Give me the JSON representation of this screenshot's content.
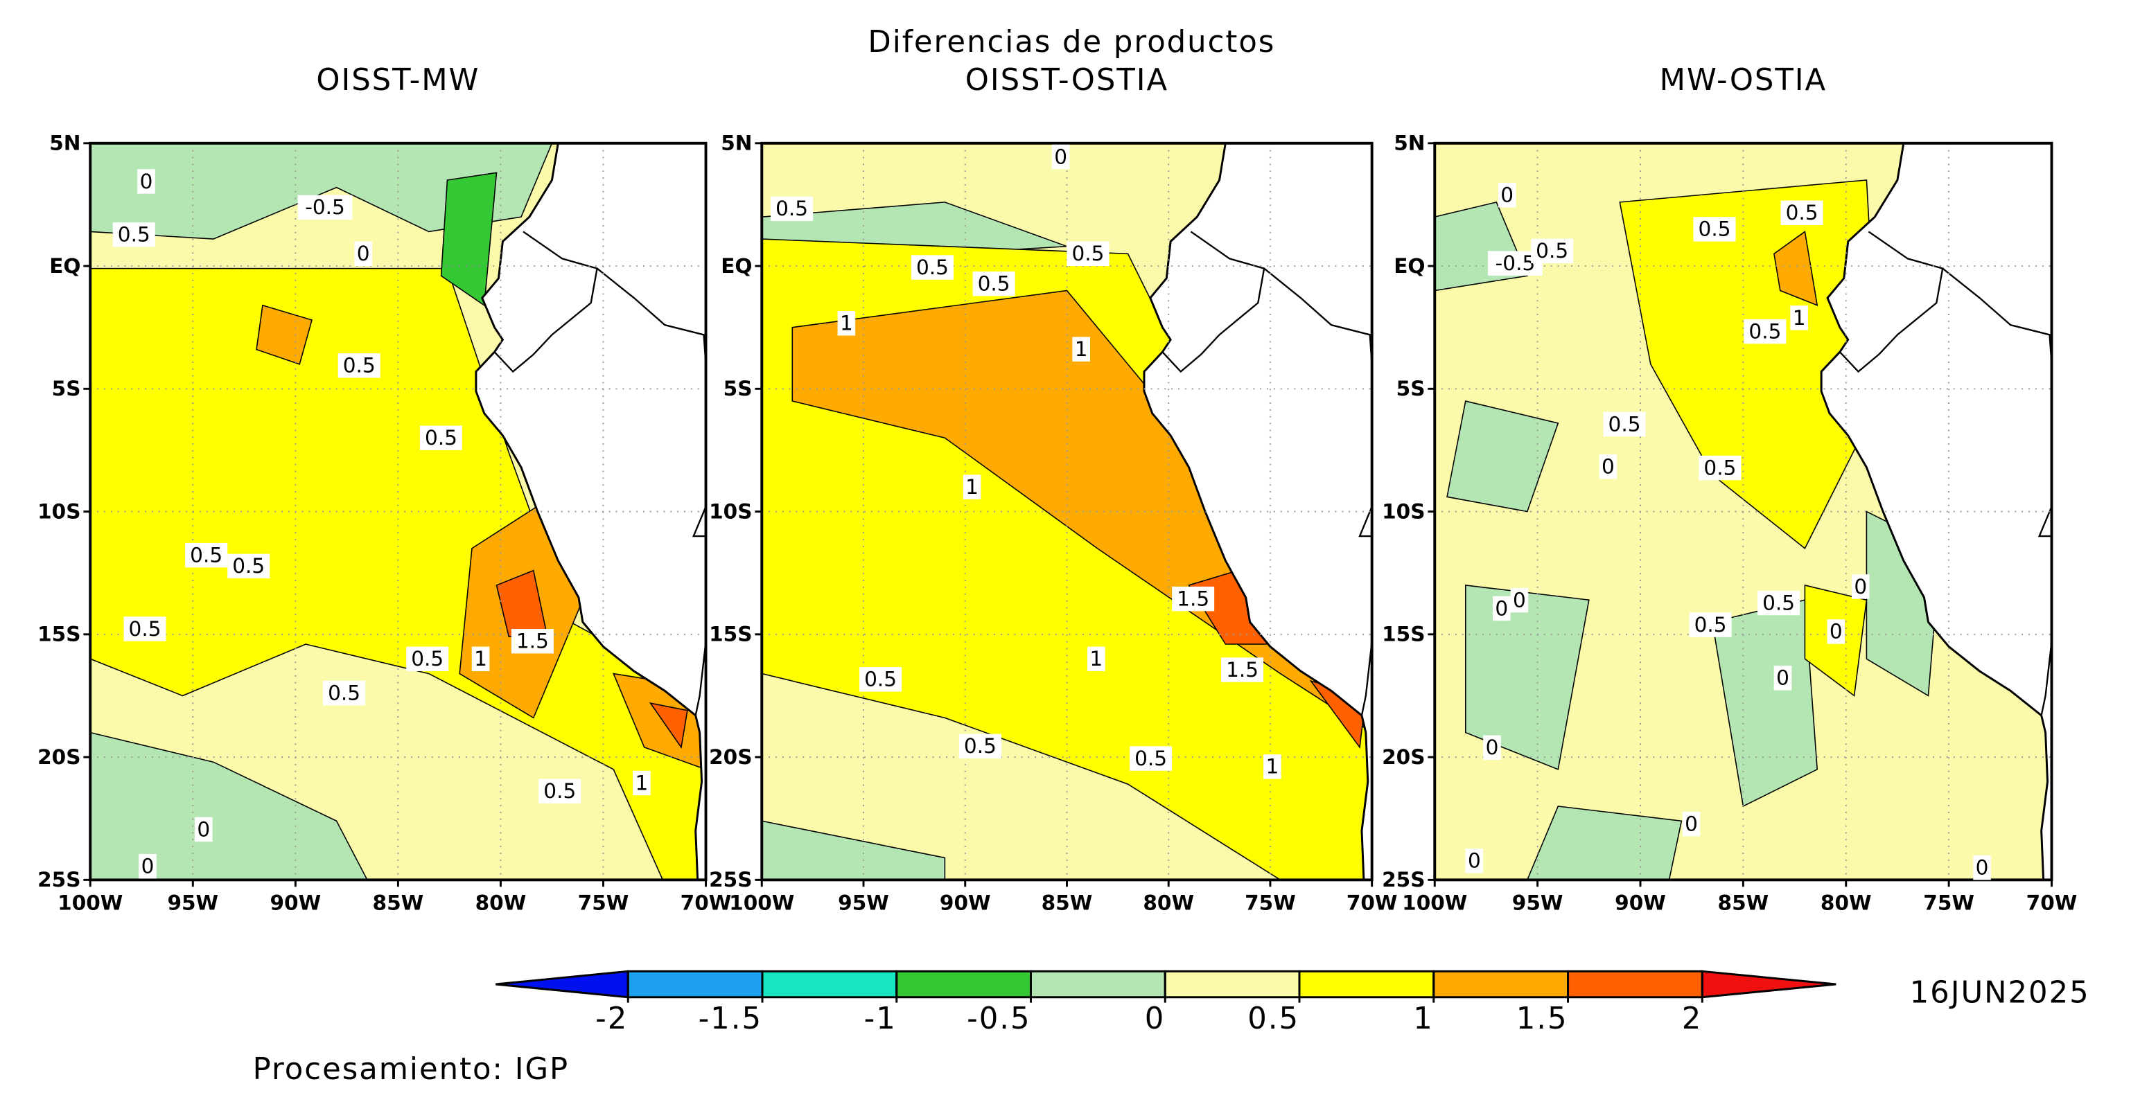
{
  "title": "Diferencias de productos",
  "panels": [
    {
      "title": "OISST-MW",
      "contour_labels": [
        "0",
        "-0.5",
        "0.5",
        "0",
        "0.5",
        "0.5",
        "0.5",
        "0.5",
        "0.5",
        "0.5",
        "1",
        "1.5",
        "0.5",
        "0.5",
        "1",
        "0",
        "0"
      ]
    },
    {
      "title": "OISST-OSTIA",
      "contour_labels": [
        "0",
        "0.5",
        "0.5",
        "0.5",
        "0.5",
        "1",
        "1",
        "1",
        "1.5",
        "1.5",
        "1",
        "0.5",
        "0.5",
        "0.5",
        "1"
      ]
    },
    {
      "title": "MW-OSTIA",
      "contour_labels": [
        "0",
        "0.5",
        "0.5",
        "-0.5",
        "0.5",
        "0.5",
        "1",
        "0.5",
        "0",
        "0.5",
        "0",
        "0",
        "0.5",
        "0.5",
        "0",
        "0",
        "0",
        "0",
        "0",
        "0",
        "0"
      ]
    }
  ],
  "lat_labels": [
    "5N",
    "EQ",
    "5S",
    "10S",
    "15S",
    "20S",
    "25S"
  ],
  "lon_labels": [
    "100W",
    "95W",
    "90W",
    "85W",
    "80W",
    "75W",
    "70W"
  ],
  "colorbar": {
    "ticks": [
      -2,
      -1.5,
      -1,
      -0.5,
      0,
      0.5,
      1,
      1.5,
      2
    ],
    "colors": [
      "#0010ee",
      "#1ea0f0",
      "#18e6c0",
      "#35c835",
      "#b4e6b4",
      "#fafaaa",
      "#ffff00",
      "#ffaa00",
      "#ff6000",
      "#f01010"
    ]
  },
  "date": "16JUN2025",
  "credit": "Procesamiento: IGP"
}
